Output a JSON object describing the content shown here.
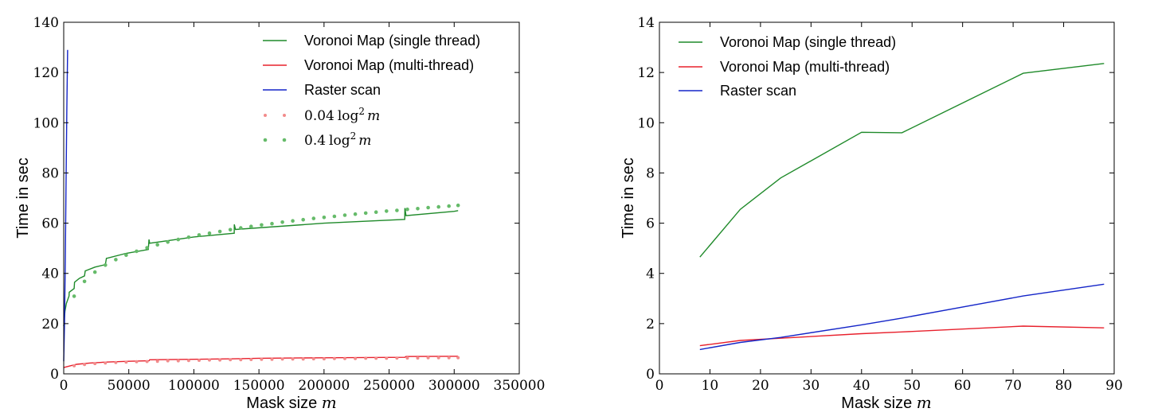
{
  "colors": {
    "green": "#1f8a2a",
    "red": "#e8202c",
    "blue": "#1425c8",
    "green_dots": "#66bb6a",
    "red_dots": "#f28b8b"
  },
  "chart_data": [
    {
      "type": "line",
      "xlabel_text": "Mask size ",
      "xlabel_var": "m",
      "ylabel": "Time in sec",
      "xlim": [
        0,
        350000
      ],
      "ylim": [
        0,
        140
      ],
      "xticks": [
        0,
        50000,
        100000,
        150000,
        200000,
        250000,
        300000,
        350000
      ],
      "yticks": [
        0,
        20,
        40,
        60,
        80,
        100,
        120,
        140
      ],
      "grid": false,
      "legend_placement": "top-right",
      "series": [
        {
          "name": "Voronoi Map (single thread)",
          "kind": "line",
          "color": "#1f8a2a",
          "x": [
            0,
            1000,
            2000,
            4096,
            4200,
            8000,
            8192,
            8300,
            12000,
            16000,
            16384,
            16500,
            24000,
            32000,
            32768,
            33000,
            48000,
            65000,
            65536,
            66000,
            100000,
            131000,
            131072,
            132000,
            200000,
            262000,
            262144,
            263000,
            300000,
            303000
          ],
          "y": [
            19,
            25,
            28,
            31,
            32.5,
            34,
            35.5,
            36.5,
            38,
            39,
            40.5,
            41,
            42.5,
            43.5,
            46,
            46,
            48,
            49.5,
            53.5,
            52,
            54.5,
            56,
            59.5,
            57.5,
            60,
            61.5,
            66,
            63,
            64.7,
            65
          ]
        },
        {
          "name": "Voronoi Map (multi-thread)",
          "kind": "line",
          "color": "#e8202c",
          "x": [
            0,
            5000,
            10000,
            20000,
            32768,
            50000,
            65536,
            66000,
            100000,
            131072,
            150000,
            200000,
            262144,
            263000,
            303000
          ],
          "y": [
            2.5,
            3.2,
            3.8,
            4.3,
            4.7,
            5.0,
            5.2,
            5.6,
            5.8,
            6.0,
            6.2,
            6.4,
            6.6,
            6.9,
            7.0
          ]
        },
        {
          "name": "Raster scan",
          "kind": "line",
          "color": "#1425c8",
          "x": [
            0,
            600,
            1200,
            1800,
            2400,
            3000
          ],
          "y": [
            5,
            20,
            45,
            75,
            105,
            129
          ]
        },
        {
          "name_coef": "0.04",
          "name_fn": "log",
          "name_pow": "2",
          "name_var": "m",
          "kind": "dots",
          "coef": 0.04,
          "color": "#f28b8b",
          "x": [
            8000,
            16000,
            24000,
            32000,
            40000,
            48000,
            56000,
            64000,
            72000,
            80000,
            88000,
            96000,
            104000,
            112000,
            120000,
            128000,
            136000,
            144000,
            152000,
            160000,
            168000,
            176000,
            184000,
            192000,
            200000,
            208000,
            216000,
            224000,
            232000,
            240000,
            248000,
            256000,
            264000,
            272000,
            280000,
            288000,
            296000,
            303000
          ],
          "y": [
            3.2,
            3.7,
            4.1,
            4.3,
            4.5,
            4.7,
            4.8,
            4.9,
            5.0,
            5.2,
            5.2,
            5.3,
            5.4,
            5.5,
            5.5,
            5.6,
            5.6,
            5.7,
            5.8,
            5.8,
            5.9,
            5.9,
            5.9,
            6.0,
            6.0,
            6.1,
            6.1,
            6.1,
            6.2,
            6.2,
            6.2,
            6.3,
            6.3,
            6.3,
            6.4,
            6.4,
            6.4,
            6.4
          ]
        },
        {
          "name_coef": "0.4",
          "name_fn": "log",
          "name_pow": "2",
          "name_var": "m",
          "kind": "dots",
          "coef": 0.4,
          "color": "#66bb6a",
          "x": [
            8000,
            16000,
            24000,
            32000,
            40000,
            48000,
            56000,
            64000,
            72000,
            80000,
            88000,
            96000,
            104000,
            112000,
            120000,
            128000,
            136000,
            144000,
            152000,
            160000,
            168000,
            176000,
            184000,
            192000,
            200000,
            208000,
            216000,
            224000,
            232000,
            240000,
            248000,
            256000,
            264000,
            272000,
            280000,
            288000,
            296000,
            303000
          ],
          "y": [
            30.9,
            36.8,
            40.5,
            43.3,
            45.5,
            47.3,
            48.8,
            50.2,
            51.4,
            52.5,
            53.5,
            54.4,
            55.3,
            56.0,
            56.7,
            57.4,
            58.1,
            58.7,
            59.3,
            59.8,
            60.4,
            60.9,
            61.4,
            61.9,
            62.3,
            62.7,
            63.2,
            63.6,
            64.0,
            64.4,
            64.8,
            65.1,
            65.5,
            65.8,
            66.2,
            66.5,
            66.8,
            67.1
          ]
        }
      ]
    },
    {
      "type": "line",
      "xlabel_text": "Mask size ",
      "xlabel_var": "m",
      "ylabel": "Time in sec",
      "xlim": [
        0,
        90
      ],
      "ylim": [
        0,
        14
      ],
      "xticks": [
        0,
        10,
        20,
        30,
        40,
        50,
        60,
        70,
        80,
        90
      ],
      "yticks": [
        0,
        2,
        4,
        6,
        8,
        10,
        12,
        14
      ],
      "grid": false,
      "legend_placement": "top-left",
      "series": [
        {
          "name": "Voronoi Map (single thread)",
          "kind": "line",
          "color": "#1f8a2a",
          "x": [
            8,
            16,
            24,
            40,
            48,
            72,
            88
          ],
          "y": [
            4.65,
            6.55,
            7.8,
            9.62,
            9.6,
            11.97,
            12.36
          ]
        },
        {
          "name": "Voronoi Map (multi-thread)",
          "kind": "line",
          "color": "#e8202c",
          "x": [
            8,
            16,
            24,
            40,
            48,
            72,
            88
          ],
          "y": [
            1.12,
            1.33,
            1.42,
            1.6,
            1.67,
            1.9,
            1.83
          ]
        },
        {
          "name": "Raster scan",
          "kind": "line",
          "color": "#1425c8",
          "x": [
            8,
            16,
            24,
            40,
            48,
            72,
            88
          ],
          "y": [
            0.97,
            1.25,
            1.45,
            1.95,
            2.22,
            3.1,
            3.57
          ]
        }
      ]
    }
  ]
}
